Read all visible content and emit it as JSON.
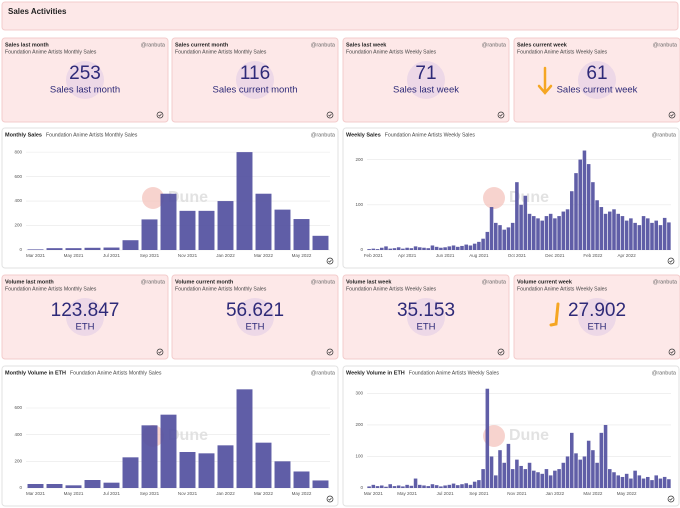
{
  "header": {
    "title": "Sales Activities"
  },
  "cards": [
    {
      "title": "Sales last month",
      "subtitle": "Foundation Anime Artists Monthly Sales",
      "author": "@ranbuta",
      "value": 253,
      "label": "Sales last month"
    },
    {
      "title": "Sales current month",
      "subtitle": "Foundation Anime Artists Monthly Sales",
      "author": "@ranbuta",
      "value": 116,
      "label": "Sales current month"
    },
    {
      "title": "Sales last week",
      "subtitle": "Foundation Anime Artists Weekly Sales",
      "author": "@ranbuta",
      "value": 71,
      "label": "Sales last week"
    },
    {
      "title": "Sales current week",
      "subtitle": "Foundation Anime Artists Weekly Sales",
      "author": "@ranbuta",
      "value": 61,
      "label": "Sales current week"
    },
    {
      "title": "Volume last month",
      "subtitle": "Foundation Anime Artists Monthly Sales",
      "author": "@ranbuta",
      "value": 123.847,
      "label": "ETH"
    },
    {
      "title": "Volume current month",
      "subtitle": "Foundation Anime Artists Monthly Sales",
      "author": "@ranbuta",
      "value": 56.621,
      "label": "ETH"
    },
    {
      "title": "Volume last week",
      "subtitle": "Foundation Anime Artists Weekly Sales",
      "author": "@ranbuta",
      "value": 35.153,
      "label": "ETH"
    },
    {
      "title": "Volume current week",
      "subtitle": "Foundation Anime Artists Weekly Sales",
      "author": "@ranbuta",
      "value": 27.902,
      "label": "ETH"
    }
  ],
  "chart_data": [
    {
      "type": "bar",
      "title": "Monthly Sales",
      "subtitle": "Foundation Anime Artists Monthly Sales",
      "author": "@ranbuta",
      "watermark": "Dune",
      "color": "#5350a0",
      "categories": [
        "Mar 2021",
        null,
        "May 2021",
        null,
        "Jul 2021",
        null,
        "Sep 2021",
        null,
        "Nov 2021",
        null,
        "Jan 2022",
        null,
        "Mar 2022",
        null,
        "May 2022",
        null
      ],
      "values": [
        5,
        15,
        15,
        18,
        20,
        80,
        250,
        460,
        320,
        320,
        400,
        800,
        460,
        330,
        253,
        116
      ],
      "ylim": [
        0,
        850
      ],
      "yticks": [
        0,
        200,
        400,
        600,
        800
      ],
      "grid": true
    },
    {
      "type": "bar",
      "title": "Weekly Sales",
      "subtitle": "Foundation Anime Artists Weekly Sales",
      "author": "@ranbuta",
      "watermark": "Dune",
      "color": "#5350a0",
      "categories": [
        null,
        "Feb 2021",
        null,
        null,
        null,
        null,
        null,
        null,
        null,
        "Apr 2021",
        null,
        null,
        null,
        null,
        null,
        null,
        null,
        null,
        "Jun 2021",
        null,
        null,
        null,
        null,
        null,
        null,
        null,
        "Aug 2021",
        null,
        null,
        null,
        null,
        null,
        null,
        null,
        null,
        "Oct 2021",
        null,
        null,
        null,
        null,
        null,
        null,
        null,
        null,
        "Dec 2021",
        null,
        null,
        null,
        null,
        null,
        null,
        null,
        null,
        "Feb 2022",
        null,
        null,
        null,
        null,
        null,
        null,
        null,
        "Apr 2022",
        null,
        null,
        null,
        null,
        null,
        null,
        null,
        null,
        null,
        null
      ],
      "values": [
        2,
        3,
        2,
        5,
        8,
        3,
        4,
        6,
        3,
        5,
        4,
        8,
        6,
        5,
        4,
        10,
        7,
        5,
        6,
        8,
        10,
        7,
        9,
        12,
        10,
        14,
        18,
        25,
        40,
        95,
        60,
        55,
        45,
        50,
        60,
        150,
        100,
        120,
        80,
        75,
        70,
        65,
        75,
        80,
        70,
        75,
        85,
        90,
        130,
        170,
        200,
        220,
        190,
        150,
        110,
        95,
        80,
        85,
        90,
        80,
        75,
        65,
        70,
        60,
        55,
        75,
        70,
        60,
        65,
        55,
        71,
        61
      ],
      "ylim": [
        0,
        230
      ],
      "yticks": [
        0,
        100,
        200
      ],
      "grid": true
    },
    {
      "type": "bar",
      "title": "Monthly Volume in ETH",
      "subtitle": "Foundation Anime Artists Monthly Sales",
      "author": "@ranbuta",
      "watermark": "Dune",
      "color": "#5350a0",
      "categories": [
        "Mar 2021",
        null,
        "May 2021",
        null,
        "Jul 2021",
        null,
        "Sep 2021",
        null,
        "Nov 2021",
        null,
        "Jan 2022",
        null,
        "Mar 2022",
        null,
        "May 2022",
        null
      ],
      "values": [
        30,
        30,
        20,
        60,
        40,
        230,
        470,
        550,
        270,
        260,
        320,
        740,
        340,
        200,
        123.847,
        56.621
      ],
      "ylim": [
        0,
        780
      ],
      "yticks": [
        0,
        200,
        400,
        600
      ],
      "grid": true
    },
    {
      "type": "bar",
      "title": "Weekly Volume in ETH",
      "subtitle": "Foundation Anime Artists Weekly Sales",
      "author": "@ranbuta",
      "watermark": "Dune",
      "color": "#5350a0",
      "categories": [
        null,
        "Mar 2021",
        null,
        null,
        null,
        null,
        null,
        null,
        null,
        "May 2021",
        null,
        null,
        null,
        null,
        null,
        null,
        null,
        null,
        "Jul 2021",
        null,
        null,
        null,
        null,
        null,
        null,
        null,
        "Sep 2021",
        null,
        null,
        null,
        null,
        null,
        null,
        null,
        null,
        "Nov 2021",
        null,
        null,
        null,
        null,
        null,
        null,
        null,
        null,
        "Jan 2022",
        null,
        null,
        null,
        null,
        null,
        null,
        null,
        null,
        "Mar 2022",
        null,
        null,
        null,
        null,
        null,
        null,
        null,
        "May 2022",
        null,
        null,
        null,
        null,
        null,
        null,
        null,
        null,
        null,
        null
      ],
      "values": [
        5,
        10,
        6,
        8,
        4,
        12,
        6,
        8,
        5,
        10,
        7,
        30,
        10,
        8,
        6,
        12,
        9,
        5,
        8,
        10,
        14,
        9,
        12,
        15,
        10,
        20,
        25,
        60,
        315,
        100,
        40,
        120,
        80,
        140,
        60,
        90,
        70,
        60,
        80,
        55,
        50,
        45,
        60,
        40,
        55,
        60,
        80,
        100,
        175,
        110,
        90,
        100,
        150,
        120,
        80,
        175,
        200,
        60,
        50,
        40,
        35,
        45,
        30,
        55,
        40,
        30,
        35,
        25,
        40,
        30,
        35.153,
        27.902
      ],
      "ylim": [
        0,
        330
      ],
      "yticks": [
        0,
        100,
        200,
        300
      ],
      "grid": true
    }
  ]
}
